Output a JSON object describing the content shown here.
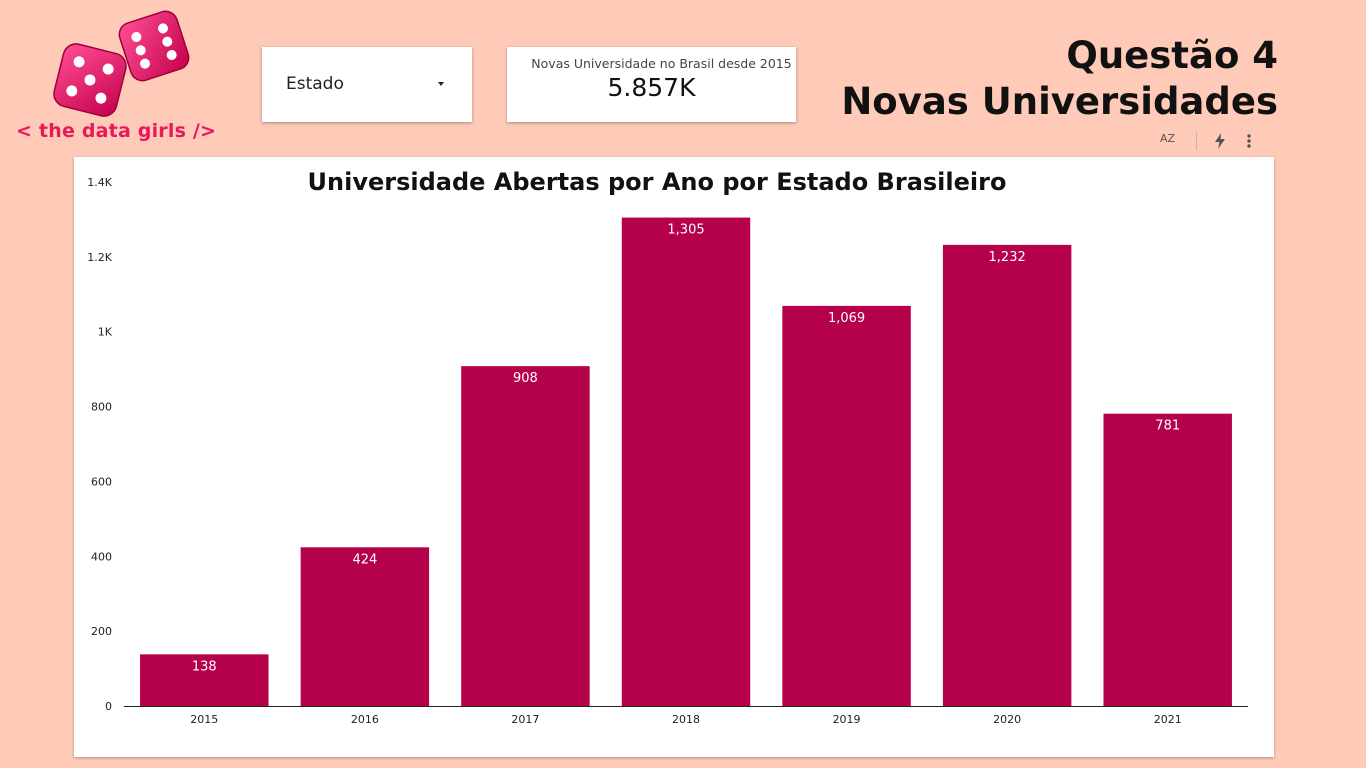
{
  "brand": {
    "text": "< the data girls />"
  },
  "filter": {
    "label": "Estado"
  },
  "kpi": {
    "label": "Novas Universidade no Brasil desde 2015",
    "value": "5.857K"
  },
  "page_title": {
    "line1": "Questão 4",
    "line2": "Novas Universidades"
  },
  "toolbar": {
    "sort_label": "AZ"
  },
  "colors": {
    "bar": "#b5004b",
    "background": "#ffcbb8",
    "brand": "#e8185a"
  },
  "chart_data": {
    "type": "bar",
    "title": "Universidade Abertas por Ano por Estado Brasileiro",
    "xlabel": "",
    "ylabel": "",
    "categories": [
      "2015",
      "2016",
      "2017",
      "2018",
      "2019",
      "2020",
      "2021"
    ],
    "values": [
      138,
      424,
      908,
      1305,
      1069,
      1232,
      781
    ],
    "value_labels": [
      "138",
      "424",
      "908",
      "1,305",
      "1,069",
      "1,232",
      "781"
    ],
    "ylim": [
      0,
      1400
    ],
    "yticks": [
      0,
      200,
      400,
      600,
      800,
      1000,
      1200,
      1400
    ],
    "ytick_labels": [
      "0",
      "200",
      "400",
      "600",
      "800",
      "1K",
      "1.2K",
      "1.4K"
    ],
    "grid": false,
    "legend": "none"
  }
}
